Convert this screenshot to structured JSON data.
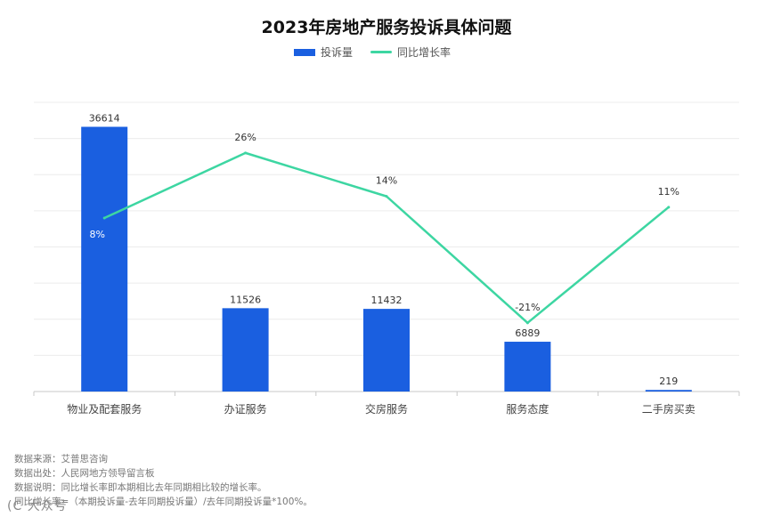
{
  "colors": {
    "bar": "#1a5fe0",
    "line": "#3dd6a2",
    "grid": "#ececec",
    "axis": "#c8c8c8"
  },
  "chart_data": {
    "type": "bar",
    "title": "2023年房地产服务投诉具体问题",
    "categories": [
      "物业及配套服务",
      "办证服务",
      "交房服务",
      "服务态度",
      "二手房买卖"
    ],
    "series": [
      {
        "name": "投诉量",
        "type": "bar",
        "values": [
          36614,
          11526,
          11432,
          6889,
          219
        ],
        "labels": [
          "36614",
          "11526",
          "11432",
          "6889",
          "219"
        ]
      },
      {
        "name": "同比增长率",
        "type": "line",
        "axis": "right",
        "values": [
          8,
          26,
          14,
          -21,
          11
        ],
        "labels": [
          "8%",
          "26%",
          "14%",
          "-21%",
          "11%"
        ]
      }
    ],
    "ylim": [
      0,
      40000
    ],
    "y2lim": [
      -40,
      40
    ],
    "grid": true,
    "legend": "top-center"
  },
  "notes": [
    "数据来源：艾普思咨询",
    "数据出处：人民网地方领导留言板",
    "数据说明：同比增长率即本期相比去年同期相比较的增长率。",
    "同比增长率=（本期投诉量-去年同期投诉量）/去年同期投诉量*100%。"
  ],
  "watermark_text": "(C 大众号"
}
